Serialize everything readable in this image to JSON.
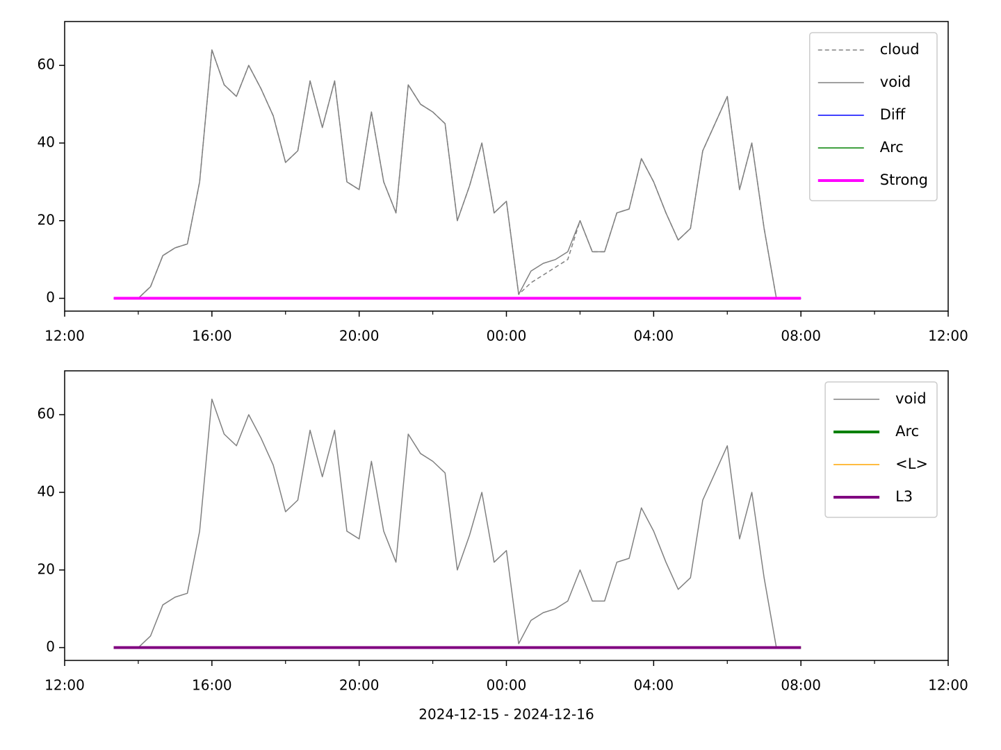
{
  "chart_data": [
    {
      "type": "line",
      "x": [
        "2024-12-15T13:20",
        "2024-12-15T13:40",
        "2024-12-15T14:00",
        "2024-12-15T14:20",
        "2024-12-15T14:40",
        "2024-12-15T15:00",
        "2024-12-15T15:20",
        "2024-12-15T15:40",
        "2024-12-15T16:00",
        "2024-12-15T16:20",
        "2024-12-15T16:40",
        "2024-12-15T17:00",
        "2024-12-15T17:20",
        "2024-12-15T17:40",
        "2024-12-15T18:00",
        "2024-12-15T18:20",
        "2024-12-15T18:40",
        "2024-12-15T19:00",
        "2024-12-15T19:20",
        "2024-12-15T19:40",
        "2024-12-15T20:00",
        "2024-12-15T20:20",
        "2024-12-15T20:40",
        "2024-12-15T21:00",
        "2024-12-15T21:20",
        "2024-12-15T21:40",
        "2024-12-15T22:00",
        "2024-12-15T22:20",
        "2024-12-15T22:40",
        "2024-12-15T23:00",
        "2024-12-15T23:20",
        "2024-12-15T23:40",
        "2024-12-16T00:00",
        "2024-12-16T00:20",
        "2024-12-16T00:40",
        "2024-12-16T01:00",
        "2024-12-16T01:20",
        "2024-12-16T01:40",
        "2024-12-16T02:00",
        "2024-12-16T02:20",
        "2024-12-16T02:40",
        "2024-12-16T03:00",
        "2024-12-16T03:20",
        "2024-12-16T03:40",
        "2024-12-16T04:00",
        "2024-12-16T04:20",
        "2024-12-16T04:40",
        "2024-12-16T05:00",
        "2024-12-16T05:20",
        "2024-12-16T05:40",
        "2024-12-16T06:00",
        "2024-12-16T06:20",
        "2024-12-16T06:40",
        "2024-12-16T07:00",
        "2024-12-16T07:20",
        "2024-12-16T07:40",
        "2024-12-16T08:00"
      ],
      "series": [
        {
          "name": "cloud",
          "color": "#808080",
          "linestyle": "dashed",
          "linewidth": 1.5,
          "values": [
            0,
            0,
            0,
            3,
            11,
            13,
            14,
            30,
            64,
            55,
            52,
            60,
            54,
            47,
            35,
            38,
            56,
            44,
            56,
            30,
            28,
            48,
            30,
            22,
            55,
            50,
            48,
            45,
            20,
            29,
            40,
            22,
            25,
            1,
            4,
            6,
            8,
            10,
            20,
            12,
            12,
            22,
            23,
            36,
            30,
            22,
            15,
            18,
            38,
            45,
            52,
            28,
            40,
            18,
            0,
            0,
            0
          ]
        },
        {
          "name": "void",
          "color": "#808080",
          "linestyle": "solid",
          "linewidth": 1.5,
          "values": [
            0,
            0,
            0,
            3,
            11,
            13,
            14,
            30,
            64,
            55,
            52,
            60,
            54,
            47,
            35,
            38,
            56,
            44,
            56,
            30,
            28,
            48,
            30,
            22,
            55,
            50,
            48,
            45,
            20,
            29,
            40,
            22,
            25,
            1,
            7,
            9,
            10,
            12,
            20,
            12,
            12,
            22,
            23,
            36,
            30,
            22,
            15,
            18,
            38,
            45,
            52,
            28,
            40,
            18,
            0,
            0,
            0
          ]
        },
        {
          "name": "Diff",
          "color": "#0000ff",
          "linestyle": "solid",
          "linewidth": 1.5,
          "values": [
            0,
            0,
            0,
            0,
            0,
            0,
            0,
            0,
            0,
            0,
            0,
            0,
            0,
            0,
            0,
            0,
            0,
            0,
            0,
            0,
            0,
            0,
            0,
            0,
            0,
            0,
            0,
            0,
            0,
            0,
            0,
            0,
            0,
            0,
            0,
            0,
            0,
            0,
            0,
            0,
            0,
            0,
            0,
            0,
            0,
            0,
            0,
            0,
            0,
            0,
            0,
            0,
            0,
            0,
            0,
            0,
            0
          ]
        },
        {
          "name": "Arc",
          "color": "#008000",
          "linestyle": "solid",
          "linewidth": 1.5,
          "values": [
            0,
            0,
            0,
            0,
            0,
            0,
            0,
            0,
            0,
            0,
            0,
            0,
            0,
            0,
            0,
            0,
            0,
            0,
            0,
            0,
            0,
            0,
            0,
            0,
            0,
            0,
            0,
            0,
            0,
            0,
            0,
            0,
            0,
            0,
            0,
            0,
            0,
            0,
            0,
            0,
            0,
            0,
            0,
            0,
            0,
            0,
            0,
            0,
            0,
            0,
            0,
            0,
            0,
            0,
            0,
            0,
            0
          ]
        },
        {
          "name": "Strong",
          "color": "#ff00ff",
          "linestyle": "solid",
          "linewidth": 4,
          "values": [
            0,
            0,
            0,
            0,
            0,
            0,
            0,
            0,
            0,
            0,
            0,
            0,
            0,
            0,
            0,
            0,
            0,
            0,
            0,
            0,
            0,
            0,
            0,
            0,
            0,
            0,
            0,
            0,
            0,
            0,
            0,
            0,
            0,
            0,
            0,
            0,
            0,
            0,
            0,
            0,
            0,
            0,
            0,
            0,
            0,
            0,
            0,
            0,
            0,
            0,
            0,
            0,
            0,
            0,
            0,
            0,
            0
          ]
        }
      ],
      "xlim": [
        "2024-12-15T12:00",
        "2024-12-16T12:00"
      ],
      "xticks": [
        {
          "value": "2024-12-15T12:00",
          "label": "12:00"
        },
        {
          "value": "2024-12-15T16:00",
          "label": "16:00"
        },
        {
          "value": "2024-12-15T20:00",
          "label": "20:00"
        },
        {
          "value": "2024-12-16T00:00",
          "label": "00:00"
        },
        {
          "value": "2024-12-16T04:00",
          "label": "04:00"
        },
        {
          "value": "2024-12-16T08:00",
          "label": "08:00"
        },
        {
          "value": "2024-12-16T12:00",
          "label": "12:00"
        }
      ],
      "xminorticks": [
        "2024-12-15T14:00",
        "2024-12-15T18:00",
        "2024-12-15T22:00",
        "2024-12-16T02:00",
        "2024-12-16T06:00",
        "2024-12-16T10:00"
      ],
      "ylim": [
        -3.3,
        71.3
      ],
      "yticks": [
        0,
        20,
        40,
        60
      ],
      "legend": "upper right"
    },
    {
      "type": "line",
      "x": [
        "2024-12-15T13:20",
        "2024-12-15T13:40",
        "2024-12-15T14:00",
        "2024-12-15T14:20",
        "2024-12-15T14:40",
        "2024-12-15T15:00",
        "2024-12-15T15:20",
        "2024-12-15T15:40",
        "2024-12-15T16:00",
        "2024-12-15T16:20",
        "2024-12-15T16:40",
        "2024-12-15T17:00",
        "2024-12-15T17:20",
        "2024-12-15T17:40",
        "2024-12-15T18:00",
        "2024-12-15T18:20",
        "2024-12-15T18:40",
        "2024-12-15T19:00",
        "2024-12-15T19:20",
        "2024-12-15T19:40",
        "2024-12-15T20:00",
        "2024-12-15T20:20",
        "2024-12-15T20:40",
        "2024-12-15T21:00",
        "2024-12-15T21:20",
        "2024-12-15T21:40",
        "2024-12-15T22:00",
        "2024-12-15T22:20",
        "2024-12-15T22:40",
        "2024-12-15T23:00",
        "2024-12-15T23:20",
        "2024-12-15T23:40",
        "2024-12-16T00:00",
        "2024-12-16T00:20",
        "2024-12-16T00:40",
        "2024-12-16T01:00",
        "2024-12-16T01:20",
        "2024-12-16T01:40",
        "2024-12-16T02:00",
        "2024-12-16T02:20",
        "2024-12-16T02:40",
        "2024-12-16T03:00",
        "2024-12-16T03:20",
        "2024-12-16T03:40",
        "2024-12-16T04:00",
        "2024-12-16T04:20",
        "2024-12-16T04:40",
        "2024-12-16T05:00",
        "2024-12-16T05:20",
        "2024-12-16T05:40",
        "2024-12-16T06:00",
        "2024-12-16T06:20",
        "2024-12-16T06:40",
        "2024-12-16T07:00",
        "2024-12-16T07:20",
        "2024-12-16T07:40",
        "2024-12-16T08:00"
      ],
      "series": [
        {
          "name": "void",
          "color": "#808080",
          "linestyle": "solid",
          "linewidth": 1.5,
          "values": [
            0,
            0,
            0,
            3,
            11,
            13,
            14,
            30,
            64,
            55,
            52,
            60,
            54,
            47,
            35,
            38,
            56,
            44,
            56,
            30,
            28,
            48,
            30,
            22,
            55,
            50,
            48,
            45,
            20,
            29,
            40,
            22,
            25,
            1,
            7,
            9,
            10,
            12,
            20,
            12,
            12,
            22,
            23,
            36,
            30,
            22,
            15,
            18,
            38,
            45,
            52,
            28,
            40,
            18,
            0,
            0,
            0
          ]
        },
        {
          "name": "Arc",
          "color": "#008000",
          "linestyle": "solid",
          "linewidth": 4,
          "values": [
            0,
            0,
            0,
            0,
            0,
            0,
            0,
            0,
            0,
            0,
            0,
            0,
            0,
            0,
            0,
            0,
            0,
            0,
            0,
            0,
            0,
            0,
            0,
            0,
            0,
            0,
            0,
            0,
            0,
            0,
            0,
            0,
            0,
            0,
            0,
            0,
            0,
            0,
            0,
            0,
            0,
            0,
            0,
            0,
            0,
            0,
            0,
            0,
            0,
            0,
            0,
            0,
            0,
            0,
            0,
            0,
            0
          ]
        },
        {
          "name": "<L>",
          "color": "#ffa500",
          "linestyle": "solid",
          "linewidth": 1.5,
          "values": [
            0,
            0,
            0,
            0,
            0,
            0,
            0,
            0,
            0,
            0,
            0,
            0,
            0,
            0,
            0,
            0,
            0,
            0,
            0,
            0,
            0,
            0,
            0,
            0,
            0,
            0,
            0,
            0,
            0,
            0,
            0,
            0,
            0,
            0,
            0,
            0,
            0,
            0,
            0,
            0,
            0,
            0,
            0,
            0,
            0,
            0,
            0,
            0,
            0,
            0,
            0,
            0,
            0,
            0,
            0,
            0,
            0
          ]
        },
        {
          "name": "L3",
          "color": "#800080",
          "linestyle": "solid",
          "linewidth": 4,
          "values": [
            0,
            0,
            0,
            0,
            0,
            0,
            0,
            0,
            0,
            0,
            0,
            0,
            0,
            0,
            0,
            0,
            0,
            0,
            0,
            0,
            0,
            0,
            0,
            0,
            0,
            0,
            0,
            0,
            0,
            0,
            0,
            0,
            0,
            0,
            0,
            0,
            0,
            0,
            0,
            0,
            0,
            0,
            0,
            0,
            0,
            0,
            0,
            0,
            0,
            0,
            0,
            0,
            0,
            0,
            0,
            0,
            0
          ]
        }
      ],
      "xlim": [
        "2024-12-15T12:00",
        "2024-12-16T12:00"
      ],
      "xticks": [
        {
          "value": "2024-12-15T12:00",
          "label": "12:00"
        },
        {
          "value": "2024-12-15T16:00",
          "label": "16:00"
        },
        {
          "value": "2024-12-15T20:00",
          "label": "20:00"
        },
        {
          "value": "2024-12-16T00:00",
          "label": "00:00"
        },
        {
          "value": "2024-12-16T04:00",
          "label": "04:00"
        },
        {
          "value": "2024-12-16T08:00",
          "label": "08:00"
        },
        {
          "value": "2024-12-16T12:00",
          "label": "12:00"
        }
      ],
      "xminorticks": [
        "2024-12-15T14:00",
        "2024-12-15T18:00",
        "2024-12-15T22:00",
        "2024-12-16T02:00",
        "2024-12-16T06:00",
        "2024-12-16T10:00"
      ],
      "ylim": [
        -3.3,
        71.3
      ],
      "yticks": [
        0,
        20,
        40,
        60
      ],
      "legend": "upper right",
      "xlabel": "2024-12-15 - 2024-12-16"
    }
  ]
}
